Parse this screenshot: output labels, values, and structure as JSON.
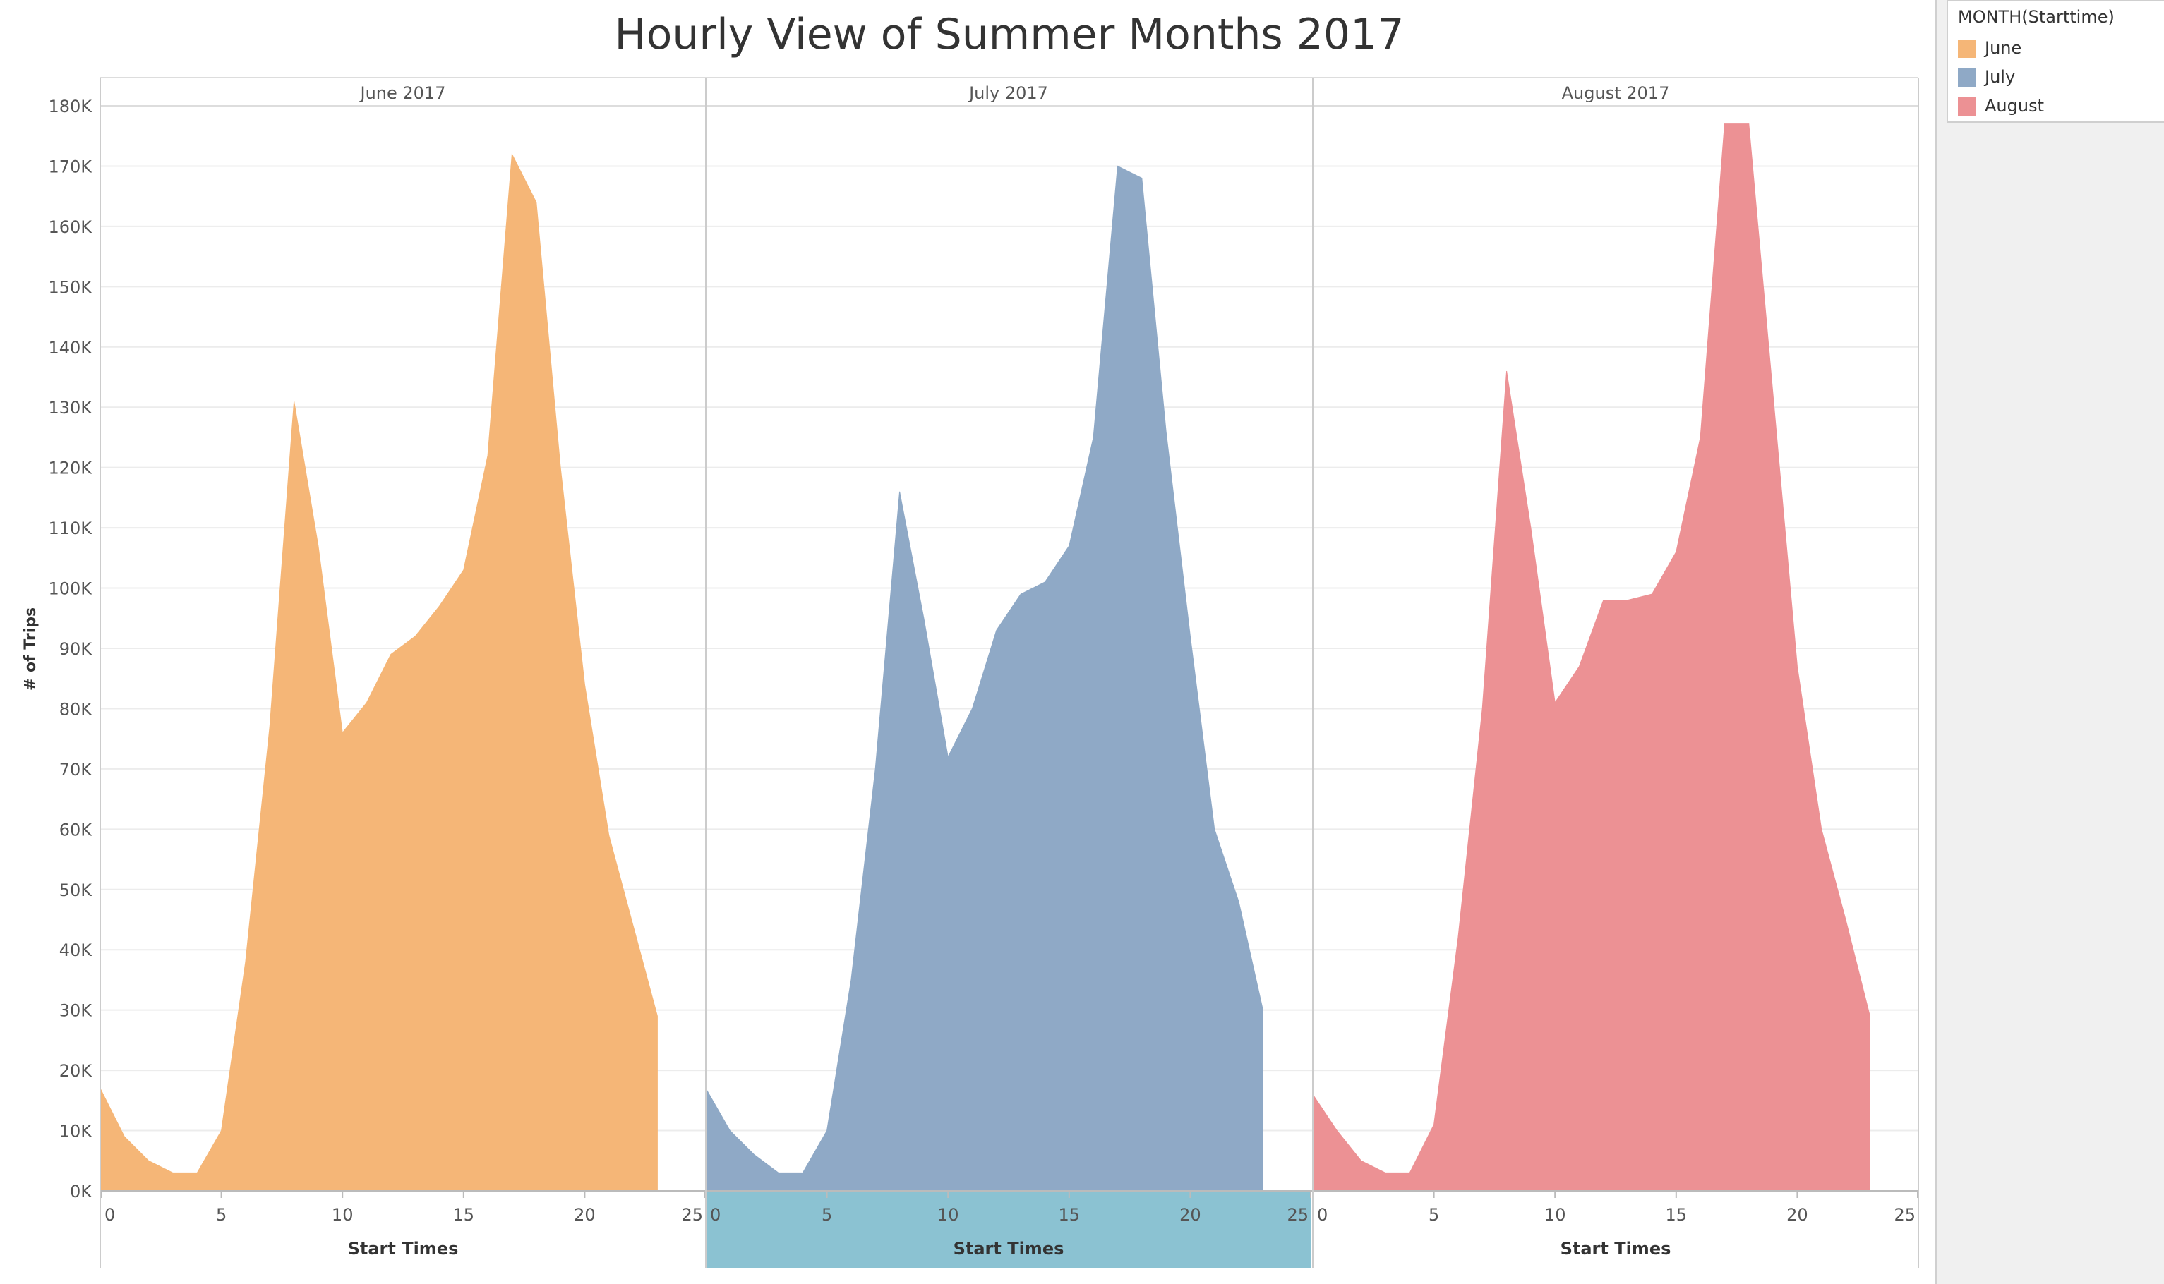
{
  "colors": {
    "June": "#F5B677",
    "July": "#8FA9C6",
    "August": "#EC9194",
    "highlight": "#8BC2D2"
  },
  "legend": {
    "title": "MONTH(Starttime)",
    "items": [
      "June",
      "July",
      "August"
    ]
  },
  "chart_data": {
    "type": "area",
    "title": "Hourly View of Summer Months 2017",
    "xlabel": "Start Times",
    "ylabel": "# of Trips",
    "xlim": [
      0,
      25
    ],
    "ylim": [
      0,
      180000
    ],
    "x_ticks": [
      "0",
      "5",
      "10",
      "15",
      "20",
      "25"
    ],
    "y_ticks": [
      "0K",
      "10K",
      "20K",
      "30K",
      "40K",
      "50K",
      "60K",
      "70K",
      "80K",
      "90K",
      "100K",
      "110K",
      "120K",
      "130K",
      "140K",
      "150K",
      "160K",
      "170K",
      "180K"
    ],
    "grid": true,
    "legend_position": "top-right",
    "x": [
      0,
      1,
      2,
      3,
      4,
      5,
      6,
      7,
      8,
      9,
      10,
      11,
      12,
      13,
      14,
      15,
      16,
      17,
      18,
      19,
      20,
      21,
      22,
      23
    ],
    "panels": [
      {
        "name": "June 2017",
        "series": "June",
        "values": [
          17000,
          9000,
          5000,
          3000,
          3000,
          10000,
          38000,
          77000,
          131000,
          107000,
          76000,
          81000,
          89000,
          92000,
          97000,
          103000,
          122000,
          172000,
          164000,
          120000,
          84000,
          59000,
          44000,
          29000
        ]
      },
      {
        "name": "July 2017",
        "series": "July",
        "values": [
          17000,
          10000,
          6000,
          3000,
          3000,
          10000,
          35000,
          70000,
          116000,
          95000,
          72000,
          80000,
          93000,
          99000,
          101000,
          107000,
          125000,
          170000,
          168000,
          126000,
          92000,
          60000,
          48000,
          30000
        ]
      },
      {
        "name": "August 2017",
        "series": "August",
        "values": [
          16000,
          10000,
          5000,
          3000,
          3000,
          11000,
          42000,
          80000,
          136000,
          110000,
          81000,
          87000,
          98000,
          98000,
          99000,
          106000,
          125000,
          177000,
          177000,
          132000,
          87000,
          60000,
          45000,
          29000
        ]
      }
    ]
  }
}
